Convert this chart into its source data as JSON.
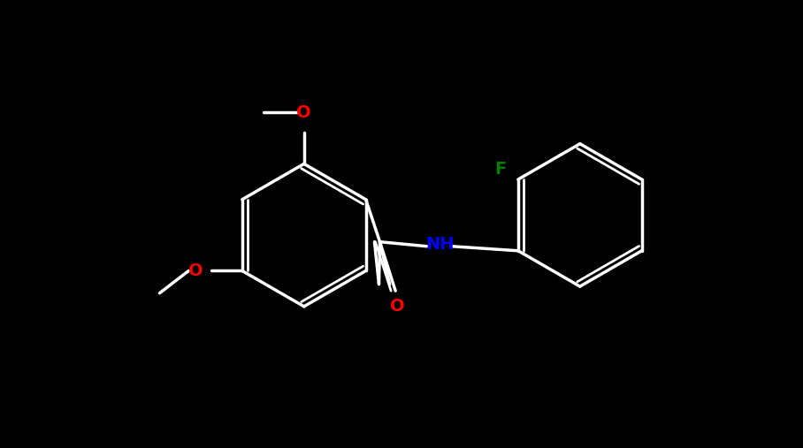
{
  "background_color": "#000000",
  "bond_color": "#000000",
  "bond_color_light": "#ffffff",
  "atom_colors": {
    "O": "#ff0000",
    "N": "#0000ff",
    "F": "#008000",
    "C": "#ffffff",
    "H": "#ffffff"
  },
  "figsize": [
    9.08,
    5.07
  ],
  "dpi": 100
}
